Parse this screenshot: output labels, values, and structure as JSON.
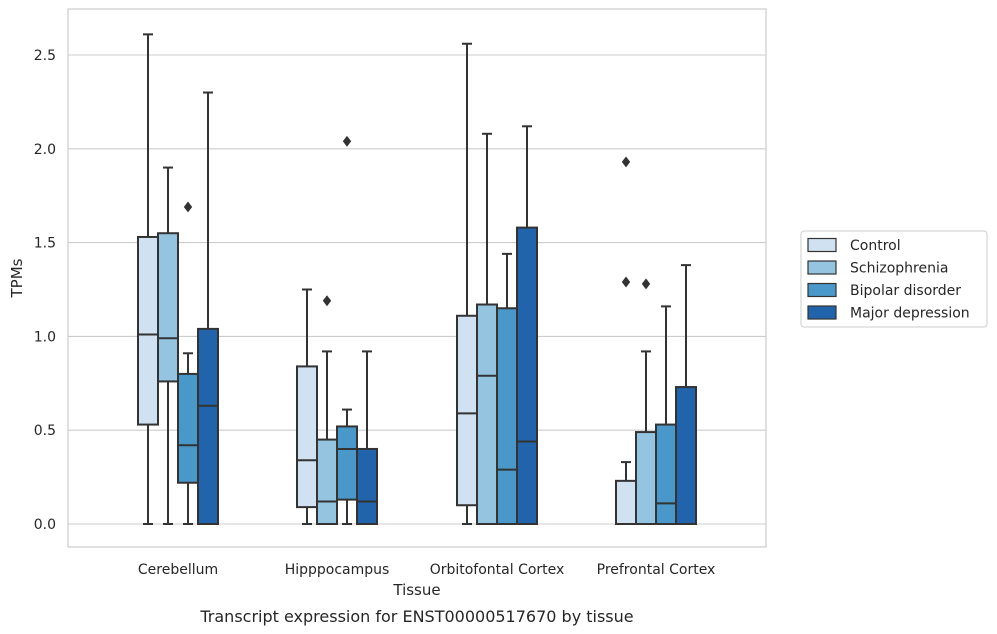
{
  "chart_data": {
    "type": "box",
    "title": "",
    "caption": "Transcript expression for ENST00000517670 by tissue",
    "xlabel": "Tissue",
    "ylabel": "TPMs",
    "ylim": [
      -0.13,
      2.74
    ],
    "yticks": [
      "0.0",
      "0.5",
      "1.0",
      "1.5",
      "2.0",
      "2.5"
    ],
    "grid": "horizontal",
    "legend_position": "right",
    "categories": [
      "Cerebellum",
      "Hipppocampus",
      "Orbitofontal Cortex",
      "Prefrontal Cortex"
    ],
    "series": [
      {
        "name": "Control",
        "color": "#d0e1f2",
        "boxes": [
          {
            "whislo": 0.0,
            "q1": 0.53,
            "med": 1.01,
            "q3": 1.53,
            "whishi": 2.61,
            "fliers": []
          },
          {
            "whislo": 0.0,
            "q1": 0.09,
            "med": 0.34,
            "q3": 0.84,
            "whishi": 1.25,
            "fliers": []
          },
          {
            "whislo": 0.0,
            "q1": 0.1,
            "med": 0.59,
            "q3": 1.11,
            "whishi": 2.56,
            "fliers": []
          },
          {
            "whislo": 0.0,
            "q1": 0.0,
            "med": 0.0,
            "q3": 0.23,
            "whishi": 0.33,
            "fliers": [
              1.29,
              1.93
            ]
          }
        ]
      },
      {
        "name": "Schizophrenia",
        "color": "#94c4df",
        "boxes": [
          {
            "whislo": 0.0,
            "q1": 0.76,
            "med": 0.99,
            "q3": 1.55,
            "whishi": 1.9,
            "fliers": []
          },
          {
            "whislo": 0.0,
            "q1": 0.0,
            "med": 0.12,
            "q3": 0.45,
            "whishi": 0.92,
            "fliers": [
              1.19
            ]
          },
          {
            "whislo": 0.0,
            "q1": 0.0,
            "med": 0.79,
            "q3": 1.17,
            "whishi": 2.08,
            "fliers": []
          },
          {
            "whislo": 0.0,
            "q1": 0.0,
            "med": 0.0,
            "q3": 0.49,
            "whishi": 0.92,
            "fliers": [
              1.28
            ]
          }
        ]
      },
      {
        "name": "Bipolar disorder",
        "color": "#4a98c9",
        "boxes": [
          {
            "whislo": 0.0,
            "q1": 0.22,
            "med": 0.42,
            "q3": 0.8,
            "whishi": 0.91,
            "fliers": [
              1.69
            ]
          },
          {
            "whislo": 0.0,
            "q1": 0.13,
            "med": 0.4,
            "q3": 0.52,
            "whishi": 0.61,
            "fliers": [
              2.04
            ]
          },
          {
            "whislo": 0.0,
            "q1": 0.0,
            "med": 0.29,
            "q3": 1.15,
            "whishi": 1.44,
            "fliers": []
          },
          {
            "whislo": 0.0,
            "q1": 0.0,
            "med": 0.11,
            "q3": 0.53,
            "whishi": 1.16,
            "fliers": []
          }
        ]
      },
      {
        "name": "Major depression",
        "color": "#2164ab",
        "boxes": [
          {
            "whislo": 0.0,
            "q1": 0.0,
            "med": 0.63,
            "q3": 1.04,
            "whishi": 2.3,
            "fliers": []
          },
          {
            "whislo": 0.0,
            "q1": 0.0,
            "med": 0.12,
            "q3": 0.4,
            "whishi": 0.92,
            "fliers": []
          },
          {
            "whislo": 0.0,
            "q1": 0.0,
            "med": 0.44,
            "q3": 1.58,
            "whishi": 2.12,
            "fliers": []
          },
          {
            "whislo": 0.0,
            "q1": 0.0,
            "med": 0.0,
            "q3": 0.73,
            "whishi": 1.38,
            "fliers": []
          }
        ]
      }
    ]
  }
}
